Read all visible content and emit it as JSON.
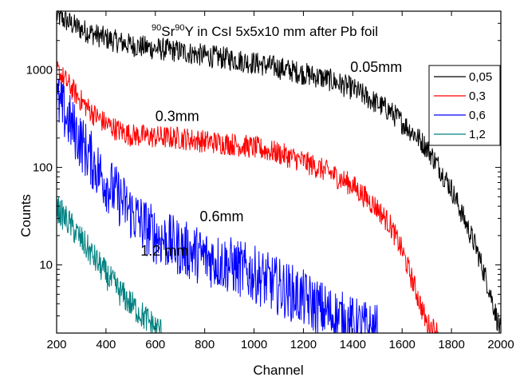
{
  "chart_data": {
    "type": "line",
    "title_sup_1": "90",
    "title_el_1": "Sr",
    "title_sup_2": "90",
    "title_rest": "Y in CsI 5x5x10 mm after Pb foil",
    "xlabel": "Channel",
    "ylabel": "Counts",
    "xlim": [
      200,
      2000
    ],
    "ylim": [
      2,
      4000
    ],
    "y_scale": "log",
    "x_ticks": [
      200,
      400,
      600,
      800,
      1000,
      1200,
      1400,
      1600,
      1800,
      2000
    ],
    "y_ticks": [
      10,
      100,
      1000
    ],
    "grid": false,
    "legend_position": "top-right",
    "series": [
      {
        "name": "0,05",
        "color": "#000000",
        "annotation": "0.05mm",
        "noise_level": 0.12,
        "points": [
          [
            200,
            3600
          ],
          [
            300,
            2600
          ],
          [
            400,
            2100
          ],
          [
            500,
            1800
          ],
          [
            600,
            1650
          ],
          [
            700,
            1550
          ],
          [
            800,
            1400
          ],
          [
            900,
            1300
          ],
          [
            1000,
            1180
          ],
          [
            1100,
            1050
          ],
          [
            1200,
            920
          ],
          [
            1300,
            800
          ],
          [
            1400,
            640
          ],
          [
            1500,
            450
          ],
          [
            1550,
            380
          ],
          [
            1600,
            290
          ],
          [
            1650,
            220
          ],
          [
            1700,
            160
          ],
          [
            1750,
            100
          ],
          [
            1800,
            60
          ],
          [
            1850,
            30
          ],
          [
            1900,
            15
          ],
          [
            1950,
            6
          ],
          [
            2000,
            2
          ]
        ]
      },
      {
        "name": "0,3",
        "color": "#ff0000",
        "annotation": "0.3mm",
        "noise_level": 0.12,
        "points": [
          [
            200,
            1000
          ],
          [
            250,
            700
          ],
          [
            300,
            480
          ],
          [
            350,
            350
          ],
          [
            400,
            280
          ],
          [
            450,
            240
          ],
          [
            500,
            215
          ],
          [
            600,
            205
          ],
          [
            700,
            200
          ],
          [
            800,
            185
          ],
          [
            900,
            175
          ],
          [
            1000,
            160
          ],
          [
            1100,
            140
          ],
          [
            1200,
            115
          ],
          [
            1300,
            90
          ],
          [
            1400,
            65
          ],
          [
            1500,
            38
          ],
          [
            1550,
            26
          ],
          [
            1600,
            14
          ],
          [
            1650,
            6
          ],
          [
            1700,
            2.5
          ],
          [
            1750,
            2
          ]
        ]
      },
      {
        "name": "0,6",
        "color": "#0000ff",
        "annotation": "0.6mm",
        "noise_level": 0.3,
        "points": [
          [
            200,
            480
          ],
          [
            250,
            300
          ],
          [
            300,
            180
          ],
          [
            350,
            110
          ],
          [
            400,
            70
          ],
          [
            450,
            50
          ],
          [
            500,
            35
          ],
          [
            550,
            26
          ],
          [
            600,
            20
          ],
          [
            700,
            15
          ],
          [
            800,
            12
          ],
          [
            900,
            10
          ],
          [
            1000,
            8
          ],
          [
            1100,
            6
          ],
          [
            1200,
            4.5
          ],
          [
            1300,
            3.2
          ],
          [
            1400,
            2.4
          ],
          [
            1500,
            2
          ]
        ]
      },
      {
        "name": "1,2",
        "color": "#008080",
        "annotation": "1.2 mm",
        "noise_level": 0.15,
        "points": [
          [
            200,
            38
          ],
          [
            250,
            27
          ],
          [
            300,
            18
          ],
          [
            350,
            12
          ],
          [
            400,
            8
          ],
          [
            450,
            5.5
          ],
          [
            500,
            4
          ],
          [
            550,
            3
          ],
          [
            600,
            2.3
          ],
          [
            630,
            2
          ]
        ]
      }
    ]
  }
}
